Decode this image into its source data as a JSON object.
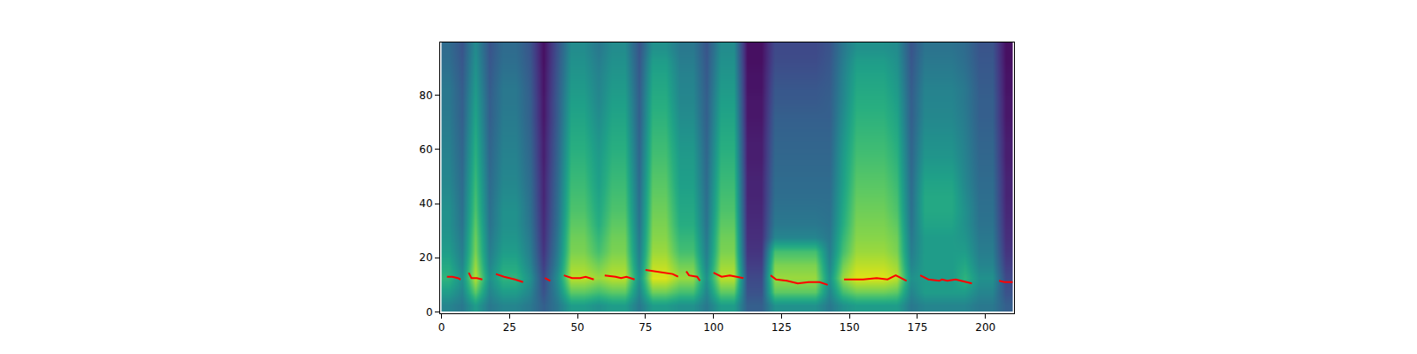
{
  "chart_data": {
    "type": "heatmap",
    "xlim": [
      -0.5,
      210.5
    ],
    "ylim": [
      -0.5,
      99.5
    ],
    "xticks": [
      0,
      25,
      50,
      75,
      100,
      125,
      150,
      175,
      200
    ],
    "yticks": [
      0,
      20,
      40,
      60,
      80
    ],
    "grid": false,
    "series": [
      {
        "type": "heatmap",
        "color": "Viridis",
        "zlim": [
          0,
          1
        ],
        "x": [
          2.5,
          7.5,
          12.5,
          17.5,
          22.5,
          27.5,
          32.5,
          37.5,
          42.5,
          47.5,
          52.5,
          57.5,
          62.5,
          67.5,
          72.5,
          77.5,
          82.5,
          87.5,
          92.5,
          97.5,
          102.5,
          107.5,
          112.5,
          117.5,
          122.5,
          127.5,
          132.5,
          137.5,
          142.5,
          147.5,
          152.5,
          157.5,
          162.5,
          167.5,
          172.5,
          177.5,
          182.5,
          187.5,
          192.5,
          197.5,
          202.5,
          207.5
        ],
        "y": [
          2.5,
          7.5,
          12.5,
          17.5,
          22.5,
          27.5,
          32.5,
          37.5,
          42.5,
          47.5,
          52.5,
          57.5,
          62.5,
          67.5,
          72.5,
          77.5,
          82.5,
          87.5,
          92.5,
          97.5
        ],
        "z": [
          [
            0.45,
            0.4,
            0.55,
            0.4,
            0.45,
            0.45,
            0.4,
            0.3,
            0.4,
            0.55,
            0.55,
            0.5,
            0.55,
            0.55,
            0.4,
            0.55,
            0.55,
            0.5,
            0.5,
            0.4,
            0.55,
            0.55,
            0.3,
            0.3,
            0.5,
            0.5,
            0.5,
            0.5,
            0.4,
            0.5,
            0.55,
            0.55,
            0.55,
            0.55,
            0.4,
            0.45,
            0.45,
            0.45,
            0.45,
            0.4,
            0.4,
            0.3
          ],
          [
            0.55,
            0.45,
            0.75,
            0.45,
            0.55,
            0.55,
            0.45,
            0.25,
            0.45,
            0.75,
            0.75,
            0.7,
            0.75,
            0.75,
            0.45,
            0.78,
            0.78,
            0.7,
            0.7,
            0.45,
            0.75,
            0.75,
            0.25,
            0.25,
            0.75,
            0.75,
            0.75,
            0.75,
            0.45,
            0.7,
            0.78,
            0.78,
            0.78,
            0.75,
            0.45,
            0.55,
            0.55,
            0.55,
            0.55,
            0.45,
            0.45,
            0.25
          ],
          [
            0.65,
            0.5,
            0.9,
            0.5,
            0.65,
            0.65,
            0.5,
            0.22,
            0.5,
            0.9,
            0.9,
            0.85,
            0.9,
            0.9,
            0.5,
            0.95,
            0.95,
            0.85,
            0.85,
            0.5,
            0.9,
            0.9,
            0.22,
            0.22,
            0.85,
            0.85,
            0.85,
            0.85,
            0.5,
            0.85,
            0.95,
            0.95,
            0.95,
            0.9,
            0.5,
            0.55,
            0.55,
            0.55,
            0.65,
            0.5,
            0.5,
            0.22
          ],
          [
            0.6,
            0.45,
            0.85,
            0.45,
            0.6,
            0.6,
            0.45,
            0.18,
            0.45,
            0.85,
            0.85,
            0.78,
            0.85,
            0.85,
            0.45,
            0.9,
            0.9,
            0.78,
            0.78,
            0.45,
            0.85,
            0.85,
            0.18,
            0.18,
            0.8,
            0.8,
            0.8,
            0.8,
            0.45,
            0.78,
            0.9,
            0.9,
            0.9,
            0.85,
            0.45,
            0.55,
            0.55,
            0.55,
            0.6,
            0.45,
            0.45,
            0.18
          ],
          [
            0.55,
            0.42,
            0.8,
            0.42,
            0.55,
            0.55,
            0.42,
            0.15,
            0.42,
            0.8,
            0.8,
            0.7,
            0.8,
            0.8,
            0.42,
            0.85,
            0.85,
            0.7,
            0.7,
            0.42,
            0.8,
            0.8,
            0.15,
            0.15,
            0.7,
            0.7,
            0.7,
            0.7,
            0.42,
            0.7,
            0.85,
            0.85,
            0.85,
            0.8,
            0.42,
            0.55,
            0.55,
            0.55,
            0.55,
            0.42,
            0.42,
            0.15
          ],
          [
            0.52,
            0.4,
            0.78,
            0.4,
            0.52,
            0.52,
            0.4,
            0.13,
            0.4,
            0.78,
            0.78,
            0.66,
            0.78,
            0.78,
            0.4,
            0.82,
            0.82,
            0.66,
            0.66,
            0.4,
            0.78,
            0.78,
            0.13,
            0.13,
            0.45,
            0.45,
            0.45,
            0.45,
            0.4,
            0.66,
            0.82,
            0.82,
            0.82,
            0.78,
            0.4,
            0.55,
            0.55,
            0.55,
            0.52,
            0.4,
            0.4,
            0.13
          ],
          [
            0.5,
            0.38,
            0.75,
            0.38,
            0.5,
            0.5,
            0.38,
            0.12,
            0.38,
            0.75,
            0.75,
            0.62,
            0.75,
            0.75,
            0.38,
            0.8,
            0.8,
            0.62,
            0.62,
            0.38,
            0.75,
            0.75,
            0.12,
            0.12,
            0.4,
            0.4,
            0.4,
            0.4,
            0.38,
            0.62,
            0.8,
            0.8,
            0.8,
            0.75,
            0.38,
            0.58,
            0.58,
            0.58,
            0.5,
            0.38,
            0.38,
            0.12
          ],
          [
            0.5,
            0.37,
            0.72,
            0.37,
            0.5,
            0.5,
            0.37,
            0.11,
            0.37,
            0.72,
            0.72,
            0.6,
            0.72,
            0.72,
            0.37,
            0.78,
            0.78,
            0.6,
            0.6,
            0.37,
            0.72,
            0.72,
            0.11,
            0.11,
            0.38,
            0.38,
            0.38,
            0.38,
            0.37,
            0.6,
            0.78,
            0.78,
            0.78,
            0.72,
            0.37,
            0.6,
            0.6,
            0.6,
            0.5,
            0.37,
            0.37,
            0.11
          ],
          [
            0.48,
            0.36,
            0.7,
            0.36,
            0.48,
            0.48,
            0.36,
            0.1,
            0.36,
            0.7,
            0.7,
            0.58,
            0.7,
            0.7,
            0.36,
            0.76,
            0.76,
            0.58,
            0.58,
            0.36,
            0.7,
            0.7,
            0.1,
            0.1,
            0.36,
            0.36,
            0.36,
            0.36,
            0.36,
            0.58,
            0.76,
            0.76,
            0.76,
            0.7,
            0.36,
            0.6,
            0.6,
            0.6,
            0.48,
            0.36,
            0.36,
            0.1
          ],
          [
            0.46,
            0.35,
            0.68,
            0.35,
            0.46,
            0.46,
            0.35,
            0.1,
            0.35,
            0.68,
            0.68,
            0.56,
            0.68,
            0.68,
            0.35,
            0.74,
            0.74,
            0.56,
            0.56,
            0.35,
            0.68,
            0.68,
            0.1,
            0.1,
            0.35,
            0.35,
            0.35,
            0.35,
            0.35,
            0.56,
            0.74,
            0.74,
            0.74,
            0.68,
            0.35,
            0.58,
            0.58,
            0.58,
            0.46,
            0.35,
            0.35,
            0.1
          ],
          [
            0.45,
            0.34,
            0.66,
            0.34,
            0.45,
            0.45,
            0.34,
            0.09,
            0.34,
            0.66,
            0.66,
            0.55,
            0.66,
            0.66,
            0.34,
            0.72,
            0.72,
            0.55,
            0.55,
            0.34,
            0.66,
            0.66,
            0.09,
            0.09,
            0.34,
            0.34,
            0.34,
            0.34,
            0.34,
            0.55,
            0.72,
            0.72,
            0.72,
            0.66,
            0.34,
            0.55,
            0.55,
            0.55,
            0.45,
            0.34,
            0.34,
            0.09
          ],
          [
            0.44,
            0.33,
            0.64,
            0.33,
            0.44,
            0.44,
            0.33,
            0.08,
            0.33,
            0.64,
            0.64,
            0.54,
            0.64,
            0.64,
            0.33,
            0.7,
            0.7,
            0.54,
            0.54,
            0.33,
            0.64,
            0.64,
            0.08,
            0.08,
            0.33,
            0.33,
            0.33,
            0.33,
            0.33,
            0.54,
            0.7,
            0.7,
            0.7,
            0.64,
            0.33,
            0.52,
            0.52,
            0.52,
            0.44,
            0.33,
            0.33,
            0.08
          ],
          [
            0.43,
            0.32,
            0.62,
            0.32,
            0.43,
            0.43,
            0.32,
            0.08,
            0.32,
            0.62,
            0.62,
            0.52,
            0.62,
            0.62,
            0.32,
            0.68,
            0.68,
            0.52,
            0.52,
            0.32,
            0.62,
            0.62,
            0.08,
            0.08,
            0.32,
            0.32,
            0.32,
            0.32,
            0.32,
            0.52,
            0.68,
            0.68,
            0.68,
            0.62,
            0.32,
            0.5,
            0.5,
            0.5,
            0.43,
            0.32,
            0.32,
            0.08
          ],
          [
            0.42,
            0.31,
            0.6,
            0.31,
            0.42,
            0.42,
            0.31,
            0.07,
            0.31,
            0.6,
            0.6,
            0.5,
            0.6,
            0.6,
            0.31,
            0.66,
            0.66,
            0.5,
            0.5,
            0.31,
            0.6,
            0.6,
            0.07,
            0.07,
            0.31,
            0.31,
            0.31,
            0.31,
            0.31,
            0.5,
            0.66,
            0.66,
            0.66,
            0.6,
            0.31,
            0.48,
            0.48,
            0.48,
            0.42,
            0.31,
            0.31,
            0.07
          ],
          [
            0.41,
            0.3,
            0.58,
            0.3,
            0.41,
            0.41,
            0.3,
            0.06,
            0.3,
            0.58,
            0.58,
            0.48,
            0.58,
            0.58,
            0.3,
            0.64,
            0.64,
            0.48,
            0.48,
            0.3,
            0.58,
            0.58,
            0.06,
            0.06,
            0.3,
            0.3,
            0.3,
            0.3,
            0.3,
            0.48,
            0.64,
            0.64,
            0.64,
            0.58,
            0.3,
            0.46,
            0.46,
            0.46,
            0.41,
            0.3,
            0.3,
            0.06
          ],
          [
            0.4,
            0.3,
            0.56,
            0.3,
            0.4,
            0.4,
            0.3,
            0.06,
            0.3,
            0.56,
            0.56,
            0.46,
            0.56,
            0.56,
            0.3,
            0.62,
            0.62,
            0.46,
            0.46,
            0.3,
            0.56,
            0.56,
            0.06,
            0.06,
            0.28,
            0.28,
            0.28,
            0.28,
            0.3,
            0.46,
            0.62,
            0.62,
            0.62,
            0.56,
            0.3,
            0.45,
            0.45,
            0.45,
            0.4,
            0.3,
            0.3,
            0.06
          ],
          [
            0.4,
            0.29,
            0.54,
            0.29,
            0.4,
            0.4,
            0.29,
            0.05,
            0.29,
            0.54,
            0.54,
            0.45,
            0.54,
            0.54,
            0.29,
            0.6,
            0.6,
            0.45,
            0.45,
            0.29,
            0.54,
            0.54,
            0.05,
            0.05,
            0.27,
            0.27,
            0.27,
            0.27,
            0.29,
            0.45,
            0.6,
            0.6,
            0.6,
            0.54,
            0.29,
            0.44,
            0.44,
            0.44,
            0.4,
            0.29,
            0.29,
            0.05
          ],
          [
            0.38,
            0.28,
            0.52,
            0.28,
            0.38,
            0.38,
            0.28,
            0.05,
            0.28,
            0.52,
            0.52,
            0.44,
            0.52,
            0.52,
            0.28,
            0.58,
            0.58,
            0.44,
            0.44,
            0.28,
            0.52,
            0.52,
            0.05,
            0.05,
            0.25,
            0.25,
            0.25,
            0.25,
            0.28,
            0.44,
            0.58,
            0.58,
            0.58,
            0.52,
            0.28,
            0.42,
            0.42,
            0.42,
            0.38,
            0.28,
            0.28,
            0.05
          ],
          [
            0.36,
            0.27,
            0.5,
            0.27,
            0.36,
            0.36,
            0.27,
            0.04,
            0.27,
            0.5,
            0.5,
            0.42,
            0.5,
            0.5,
            0.27,
            0.55,
            0.55,
            0.42,
            0.42,
            0.27,
            0.5,
            0.5,
            0.04,
            0.04,
            0.23,
            0.23,
            0.23,
            0.23,
            0.27,
            0.42,
            0.55,
            0.55,
            0.55,
            0.5,
            0.27,
            0.4,
            0.4,
            0.4,
            0.36,
            0.27,
            0.27,
            0.04
          ],
          [
            0.35,
            0.26,
            0.48,
            0.26,
            0.35,
            0.35,
            0.26,
            0.04,
            0.26,
            0.48,
            0.48,
            0.4,
            0.48,
            0.48,
            0.26,
            0.5,
            0.5,
            0.4,
            0.4,
            0.26,
            0.48,
            0.48,
            0.04,
            0.04,
            0.22,
            0.22,
            0.22,
            0.22,
            0.26,
            0.4,
            0.5,
            0.5,
            0.5,
            0.48,
            0.26,
            0.38,
            0.38,
            0.38,
            0.35,
            0.26,
            0.26,
            0.04
          ]
        ]
      },
      {
        "type": "line",
        "color": "red",
        "line_style": "solid",
        "x": [
          2,
          4,
          6,
          7,
          8.5,
          10,
          11,
          13,
          15,
          17.5,
          20,
          23,
          27,
          30,
          34,
          38,
          40,
          42.5,
          45,
          48,
          51,
          53,
          56,
          58,
          60,
          64,
          66,
          68,
          71,
          73,
          75,
          78,
          82,
          85,
          87,
          88.5,
          90,
          91,
          94,
          95,
          97.5,
          100,
          103,
          106,
          109,
          111,
          116,
          121,
          123,
          127,
          131,
          135,
          139,
          142,
          145,
          148,
          150,
          155,
          160,
          164,
          167,
          171,
          173.5,
          176,
          179,
          183,
          184,
          186,
          189,
          193,
          195,
          200,
          205,
          207,
          210
        ],
        "values": [
          13,
          13,
          12.5,
          12,
          null,
          14.5,
          12.5,
          12.5,
          12,
          null,
          14,
          13,
          12,
          11,
          null,
          12.5,
          11.5,
          null,
          13.5,
          12.5,
          12.5,
          13,
          12,
          null,
          13.5,
          13,
          12.5,
          13,
          12,
          null,
          15.5,
          15,
          14.5,
          14,
          13,
          null,
          15,
          13.5,
          13,
          11.5,
          null,
          14.5,
          13,
          13.5,
          13,
          12.5,
          null,
          13.5,
          12,
          11.5,
          10.5,
          11,
          11,
          10,
          null,
          12,
          12,
          12,
          12.5,
          12,
          13.5,
          11.5,
          null,
          13.5,
          12,
          11.5,
          12,
          11.5,
          12,
          11,
          10.5,
          null,
          11.5,
          11,
          11
        ]
      }
    ]
  }
}
